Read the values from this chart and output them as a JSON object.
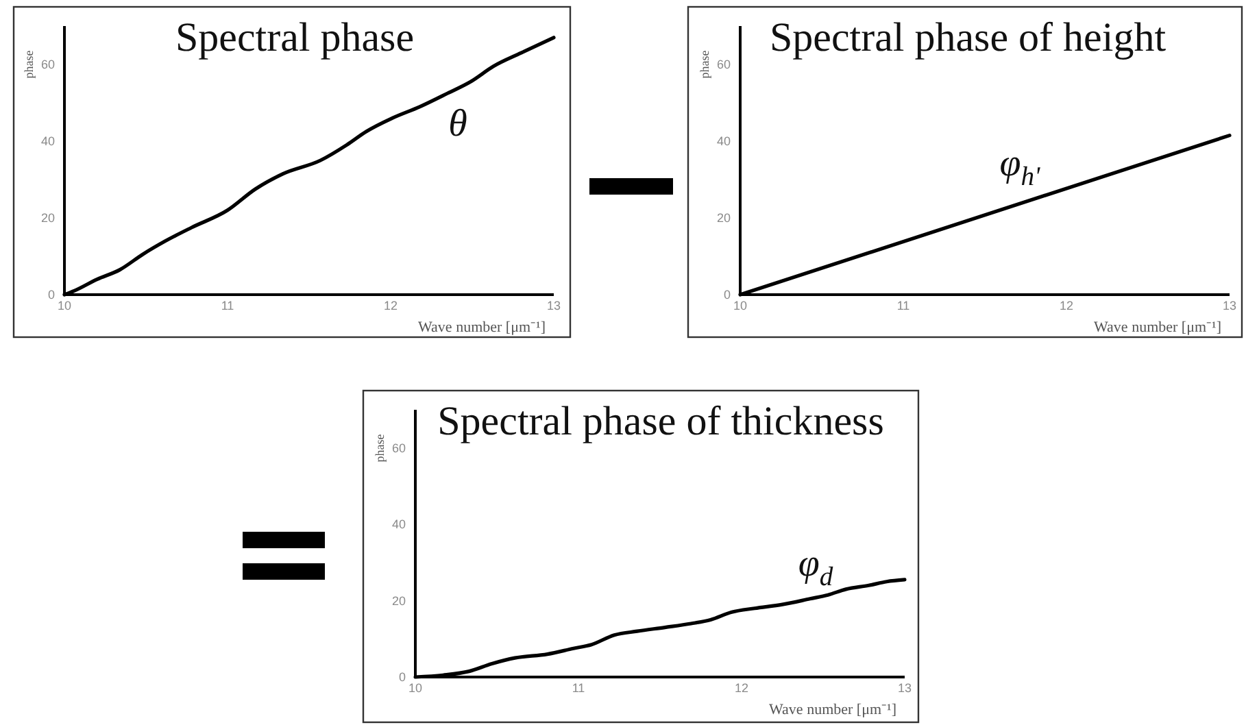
{
  "chart_data": [
    {
      "type": "line",
      "title": "Spectral phase",
      "xlabel": "Wave number [μm⁻¹]",
      "ylabel": "phase",
      "x": [
        10,
        10.06,
        10.2,
        10.34,
        10.48,
        10.62,
        10.78,
        11.0,
        11.17,
        11.34,
        11.57,
        11.73,
        11.85,
        12.01,
        12.18,
        12.35,
        12.49,
        12.63,
        12.8,
        13
      ],
      "values": [
        0,
        1,
        4,
        6.5,
        10.5,
        14,
        17.5,
        22,
        27.5,
        31.5,
        35,
        39,
        42.5,
        46,
        49,
        52.5,
        55.5,
        59.5,
        63,
        67
      ],
      "color": "#000000",
      "xlim": [
        10,
        13
      ],
      "xticks": [
        10,
        11,
        12,
        13
      ],
      "ylim": [
        0,
        70
      ],
      "yticks": [
        0,
        20,
        40,
        60
      ],
      "annotations": [
        "θ"
      ]
    },
    {
      "type": "line",
      "title": "Spectral phase of height",
      "xlabel": "Wave number [μm⁻¹]",
      "ylabel": "phase",
      "x": [
        10,
        13
      ],
      "values": [
        0,
        41.5
      ],
      "color": "#000000",
      "xlim": [
        10,
        13
      ],
      "xticks": [
        10,
        11,
        12,
        13
      ],
      "ylim": [
        0,
        70
      ],
      "yticks": [
        0,
        20,
        40,
        60
      ],
      "annotations": [
        "φ$_{h'}$"
      ]
    },
    {
      "type": "line",
      "title": "Spectral phase of thickness",
      "xlabel": "Wave number [μm⁻¹]",
      "ylabel": "phase",
      "x": [
        10,
        10.17,
        10.33,
        10.47,
        10.61,
        10.81,
        10.97,
        11.08,
        11.22,
        11.36,
        11.53,
        11.69,
        11.81,
        11.94,
        12.08,
        12.25,
        12.42,
        12.53,
        12.64,
        12.78,
        12.89,
        13
      ],
      "values": [
        0,
        0.5,
        1.5,
        3.5,
        5,
        6,
        7.5,
        8.5,
        11,
        12,
        13,
        14,
        15,
        17,
        18,
        19,
        20.5,
        21.5,
        23,
        24,
        25,
        25.5
      ],
      "color": "#000000",
      "xlim": [
        10,
        13
      ],
      "xticks": [
        10,
        11,
        12,
        13
      ],
      "ylim": [
        0,
        70
      ],
      "yticks": [
        0,
        20,
        40,
        60
      ],
      "annotations": [
        "φ$_{d}$"
      ]
    }
  ]
}
